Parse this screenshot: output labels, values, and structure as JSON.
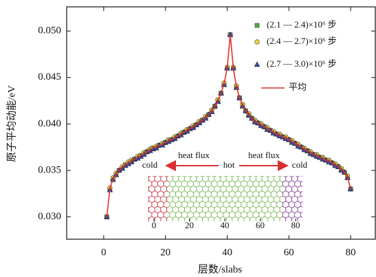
{
  "chart_data": {
    "type": "scatter",
    "x_label": "层数/slabs",
    "y_label": "原子平均动能/eV",
    "xlim": [
      -12,
      88
    ],
    "ylim": [
      0.0276,
      0.0526
    ],
    "xticks": [
      0,
      20,
      40,
      60,
      80
    ],
    "yticks": [
      {
        "value": 0.03,
        "label": "0.030"
      },
      0.035,
      {
        "value": 0.04,
        "label": "0.040"
      },
      0.045,
      {
        "value": 0.05,
        "label": "0.050"
      }
    ],
    "x": [
      1,
      2,
      3,
      4,
      5,
      6,
      7,
      8,
      9,
      10,
      11,
      12,
      13,
      14,
      15,
      16,
      17,
      18,
      19,
      20,
      21,
      22,
      23,
      24,
      25,
      26,
      27,
      28,
      29,
      30,
      31,
      32,
      33,
      34,
      35,
      36,
      37,
      38,
      39,
      40,
      41,
      42,
      43,
      44,
      45,
      46,
      47,
      48,
      49,
      50,
      51,
      52,
      53,
      54,
      55,
      56,
      57,
      58,
      59,
      60,
      61,
      62,
      63,
      64,
      65,
      66,
      67,
      68,
      69,
      70,
      71,
      72,
      73,
      74,
      75,
      76,
      77,
      78,
      79,
      80
    ],
    "series": [
      {
        "name": "(2.1 — 2.4)×10⁶ 步",
        "marker": "square",
        "color": "#4fae3c",
        "values": [
          0.03,
          0.033,
          0.0341,
          0.0346,
          0.035,
          0.0353,
          0.0356,
          0.0358,
          0.036,
          0.0362,
          0.0364,
          0.0366,
          0.0368,
          0.037,
          0.0372,
          0.0374,
          0.0375,
          0.0377,
          0.0378,
          0.038,
          0.0382,
          0.0383,
          0.0385,
          0.0387,
          0.0389,
          0.0391,
          0.0393,
          0.0395,
          0.0397,
          0.0399,
          0.0402,
          0.0404,
          0.0407,
          0.041,
          0.0414,
          0.0419,
          0.0425,
          0.0433,
          0.0443,
          0.046,
          0.0496,
          0.046,
          0.044,
          0.0428,
          0.042,
          0.0414,
          0.041,
          0.0406,
          0.0403,
          0.0401,
          0.0399,
          0.0397,
          0.0395,
          0.0393,
          0.0391,
          0.0389,
          0.0388,
          0.0386,
          0.0385,
          0.0383,
          0.0381,
          0.0379,
          0.0377,
          0.0375,
          0.0373,
          0.0371,
          0.0369,
          0.0367,
          0.0366,
          0.0364,
          0.0363,
          0.0361,
          0.036,
          0.0358,
          0.0356,
          0.0354,
          0.0351,
          0.0348,
          0.0343,
          0.033
        ]
      },
      {
        "name": "(2.4 — 2.7)×10⁶ 步",
        "marker": "circle",
        "color": "#f2d13c",
        "values": [
          0.03,
          0.0331,
          0.0342,
          0.0347,
          0.035,
          0.0354,
          0.0356,
          0.0359,
          0.0361,
          0.0362,
          0.0365,
          0.0366,
          0.0369,
          0.037,
          0.0373,
          0.0374,
          0.0376,
          0.0377,
          0.0379,
          0.038,
          0.0383,
          0.0383,
          0.0386,
          0.0387,
          0.039,
          0.0391,
          0.0394,
          0.0395,
          0.0398,
          0.0399,
          0.0403,
          0.0404,
          0.0408,
          0.041,
          0.0415,
          0.0419,
          0.0426,
          0.0433,
          0.0444,
          0.0461,
          0.0496,
          0.0461,
          0.0441,
          0.0428,
          0.0421,
          0.0414,
          0.0411,
          0.0406,
          0.0404,
          0.0401,
          0.04,
          0.0397,
          0.0396,
          0.0393,
          0.0392,
          0.0389,
          0.0389,
          0.0386,
          0.0386,
          0.0383,
          0.0382,
          0.0379,
          0.0378,
          0.0375,
          0.0374,
          0.0371,
          0.037,
          0.0367,
          0.0367,
          0.0364,
          0.0364,
          0.0361,
          0.0361,
          0.0358,
          0.0357,
          0.0354,
          0.0352,
          0.0348,
          0.0344,
          0.033
        ]
      },
      {
        "name": "(2.7 — 3.0)×10⁶ 步",
        "marker": "triangle",
        "color": "#3a4fa8",
        "values": [
          0.03,
          0.0329,
          0.034,
          0.0345,
          0.035,
          0.0352,
          0.0355,
          0.0357,
          0.0359,
          0.0362,
          0.0363,
          0.0365,
          0.0367,
          0.037,
          0.0371,
          0.0373,
          0.0374,
          0.0377,
          0.0377,
          0.038,
          0.0381,
          0.0383,
          0.0384,
          0.0387,
          0.0388,
          0.0391,
          0.0392,
          0.0395,
          0.0396,
          0.0399,
          0.0401,
          0.0404,
          0.0406,
          0.041,
          0.0413,
          0.0419,
          0.0424,
          0.0433,
          0.0442,
          0.046,
          0.0496,
          0.046,
          0.0439,
          0.0428,
          0.0419,
          0.0414,
          0.0409,
          0.0406,
          0.0402,
          0.0401,
          0.0398,
          0.0397,
          0.0394,
          0.0393,
          0.039,
          0.0389,
          0.0387,
          0.0386,
          0.0384,
          0.0383,
          0.038,
          0.0379,
          0.0376,
          0.0375,
          0.0372,
          0.0371,
          0.0368,
          0.0367,
          0.0365,
          0.0364,
          0.0362,
          0.0361,
          0.0359,
          0.0358,
          0.0355,
          0.0354,
          0.035,
          0.0348,
          0.0342,
          0.033
        ]
      },
      {
        "name": "平均",
        "marker": "line",
        "color": "#e0302a",
        "values": [
          0.03,
          0.033,
          0.0341,
          0.0346,
          0.035,
          0.0353,
          0.0356,
          0.0358,
          0.036,
          0.0362,
          0.0364,
          0.0366,
          0.0368,
          0.037,
          0.0372,
          0.0374,
          0.0375,
          0.0377,
          0.0378,
          0.038,
          0.0382,
          0.0383,
          0.0385,
          0.0387,
          0.0389,
          0.0391,
          0.0393,
          0.0395,
          0.0397,
          0.0399,
          0.0402,
          0.0404,
          0.0407,
          0.041,
          0.0414,
          0.0419,
          0.0425,
          0.0433,
          0.0443,
          0.046,
          0.0496,
          0.046,
          0.044,
          0.0428,
          0.042,
          0.0414,
          0.041,
          0.0406,
          0.0403,
          0.0401,
          0.0399,
          0.0397,
          0.0395,
          0.0393,
          0.0391,
          0.0389,
          0.0388,
          0.0386,
          0.0385,
          0.0383,
          0.0381,
          0.0379,
          0.0377,
          0.0375,
          0.0373,
          0.0371,
          0.0369,
          0.0367,
          0.0366,
          0.0364,
          0.0363,
          0.0361,
          0.036,
          0.0358,
          0.0356,
          0.0354,
          0.0351,
          0.0348,
          0.0343,
          0.033
        ]
      }
    ],
    "inset": {
      "left_label": "cold",
      "center_label": "hot",
      "right_label": "cold",
      "flux_labels": [
        "heat flux",
        "heat flux"
      ],
      "xticks": [
        0,
        20,
        40,
        60,
        80
      ]
    }
  }
}
